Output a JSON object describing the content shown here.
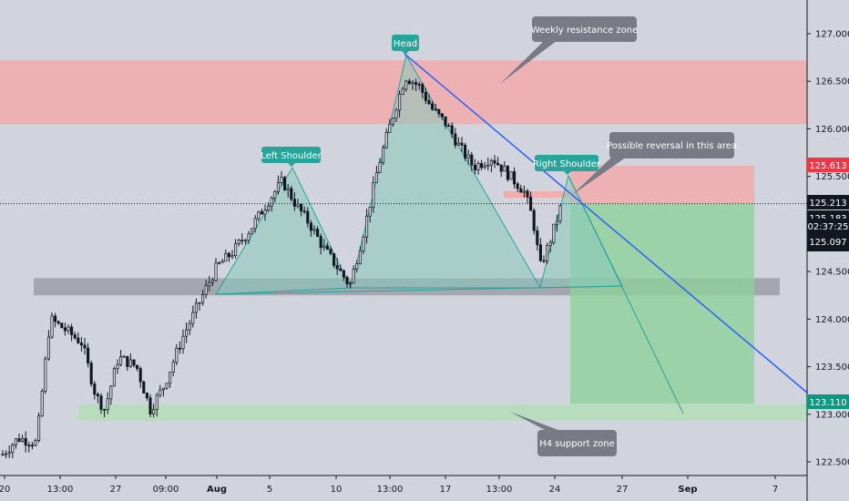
{
  "chart_data": {
    "type": "candlestick",
    "y_ticks": [
      "127.000",
      "126.500",
      "126.000",
      "125.500",
      "125.000",
      "124.500",
      "124.000",
      "123.500",
      "123.000",
      "122.500"
    ],
    "y_values": [
      127.0,
      126.5,
      126.0,
      125.5,
      125.0,
      124.5,
      124.0,
      123.5,
      123.0,
      122.5
    ],
    "ylim": [
      122.38,
      127.4
    ],
    "x_ticks": [
      {
        "label": "20",
        "bold": false
      },
      {
        "label": "13:00",
        "bold": false
      },
      {
        "label": "27",
        "bold": false
      },
      {
        "label": "09:00",
        "bold": false
      },
      {
        "label": "Aug",
        "bold": true
      },
      {
        "label": "5",
        "bold": false
      },
      {
        "label": "10",
        "bold": false
      },
      {
        "label": "13:00",
        "bold": false
      },
      {
        "label": "17",
        "bold": false
      },
      {
        "label": "13:00",
        "bold": false
      },
      {
        "label": "24",
        "bold": false
      },
      {
        "label": "27",
        "bold": false
      },
      {
        "label": "Sep",
        "bold": true
      },
      {
        "label": "7",
        "bold": false
      }
    ],
    "price_badges": [
      {
        "value": 125.613,
        "label": "125.613",
        "color": "#f23645"
      },
      {
        "value": 125.213,
        "label": "125.213",
        "color": "#131722"
      },
      {
        "value": 125.183,
        "label": "125.183",
        "color": "#131722"
      },
      {
        "value": 125.097,
        "label": "125.097",
        "color": "#131722",
        "timer": "02:37:25"
      },
      {
        "value": 123.11,
        "label": "123.110",
        "color": "#089981"
      }
    ],
    "zones": [
      {
        "name": "weekly-resistance",
        "y_from": 126.05,
        "y_to": 126.72,
        "color": "#f4a7a9"
      },
      {
        "name": "neckline-zone",
        "y_from": 124.25,
        "y_to": 124.43,
        "color": "#9598a1"
      },
      {
        "name": "h4-support",
        "y_from": 122.93,
        "y_to": 123.1,
        "color": "#b2dfb4"
      },
      {
        "name": "stop-zone",
        "y_from": 125.213,
        "y_to": 125.613,
        "color": "#f4a7a9"
      },
      {
        "name": "target-zone",
        "y_from": 123.11,
        "y_to": 125.213,
        "color": "#8ed19a"
      }
    ],
    "pattern_labels": {
      "head": "Head",
      "left_shoulder": "Left Shoulder",
      "right_shoulder": "Right Shoulder"
    },
    "annotations": {
      "weekly": "Weekly resistance zone",
      "reversal": "Possible reversal in this area",
      "support": "H4 support zone"
    },
    "colors": {
      "background": "#d1d4dc",
      "candle": "#131722",
      "pattern_fill": "#88c9bb",
      "pattern_line": "#26a69a",
      "trendline": "#2962ff",
      "badge": "#26a69a",
      "callout": "#787b86"
    }
  }
}
